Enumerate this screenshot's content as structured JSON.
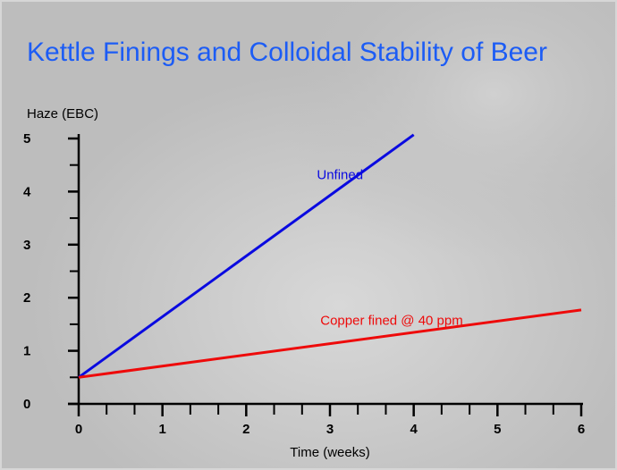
{
  "chart_data": {
    "type": "line",
    "title": "Kettle Finings and Colloidal Stability of Beer",
    "y_label": "Haze (EBC)",
    "x_label": "Time (weeks)",
    "xlim": [
      0,
      6
    ],
    "ylim": [
      0,
      5
    ],
    "xticks": [
      0,
      1,
      2,
      3,
      4,
      5,
      6
    ],
    "yticks": [
      0,
      1,
      2,
      3,
      4,
      5
    ],
    "xminorticks": [
      0.333,
      0.667,
      1.333,
      1.667,
      2.333,
      2.667,
      3.333,
      3.667,
      4.333,
      4.667,
      5.333,
      5.667
    ],
    "yminorticks": [
      0.5,
      1.5,
      2.5,
      3.5,
      4.5
    ],
    "series": [
      {
        "name": "Unfined",
        "color": "#0a0ae0",
        "x": [
          0,
          4
        ],
        "values": [
          0.5,
          5.07
        ]
      },
      {
        "name": "Copper fined @ 40 ppm",
        "color": "#ee0a0a",
        "x": [
          0,
          6
        ],
        "values": [
          0.5,
          1.77
        ]
      }
    ]
  }
}
